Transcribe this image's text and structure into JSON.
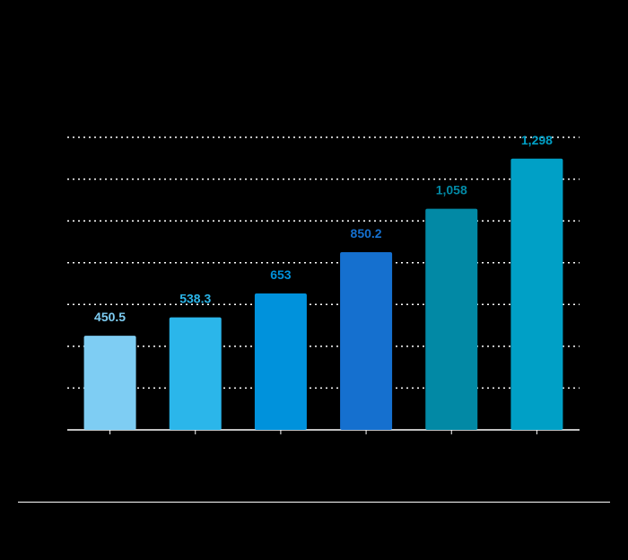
{
  "chart_data": {
    "type": "bar",
    "categories": [
      "",
      "",
      "",
      "",
      "",
      ""
    ],
    "values": [
      450.5,
      538.3,
      653,
      850.2,
      1058,
      1298
    ],
    "value_labels": [
      "450.5",
      "538.3",
      "653",
      "850.2",
      "1,058",
      "1,298"
    ],
    "bar_colors": [
      "#7ecdf3",
      "#2bb6ea",
      "#0092dc",
      "#1570cf",
      "#0289a5",
      "#00a0c6"
    ],
    "label_colors": [
      "#7ecdf3",
      "#2bb6ea",
      "#0092dc",
      "#1570cf",
      "#0289a5",
      "#00a0c6"
    ],
    "title": "",
    "xlabel": "",
    "ylabel": "",
    "ylim": [
      0,
      1400
    ],
    "grid": true,
    "legend": "none"
  }
}
